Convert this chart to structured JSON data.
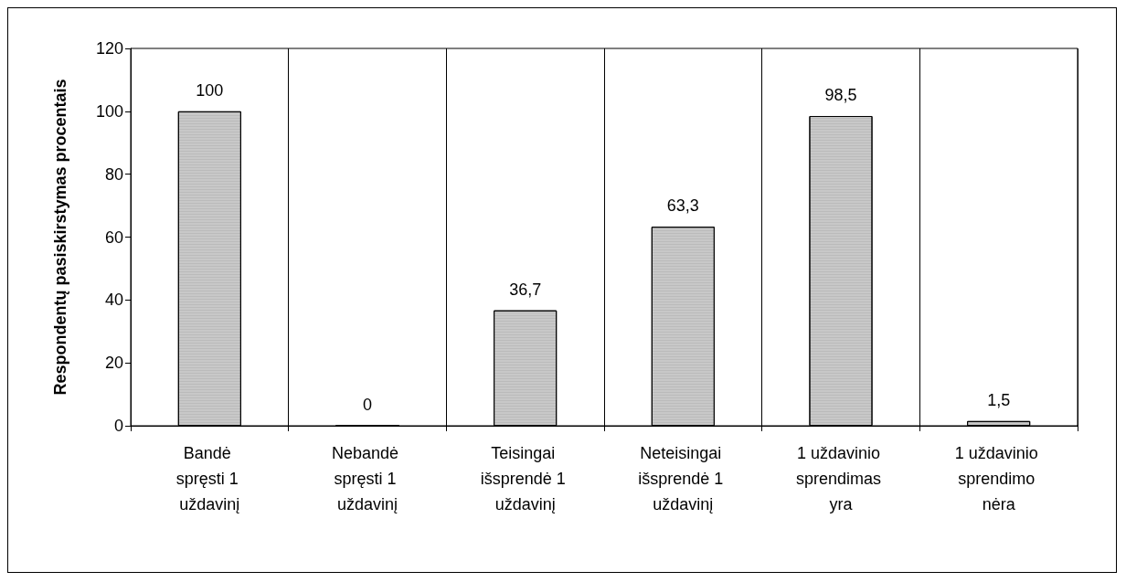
{
  "chart_data": {
    "type": "bar",
    "ylabel": "Respondentų pasiskirstymas procentais",
    "categories": [
      "Bandė spręsti 1 uždavinį",
      "Nebandė spręsti 1 uždavinį",
      "Teisingai išsprendė 1 uždavinį",
      "Neteisingai išsprendė 1 uždavinį",
      "1 uždavinio sprendimas yra",
      "1 uždavinio sprendimo nėra"
    ],
    "values": [
      100,
      0,
      36.7,
      63.3,
      98.5,
      1.5
    ],
    "color": "#c8c8c8",
    "ylim": [
      0,
      120
    ],
    "yticks": [
      0,
      20,
      40,
      60,
      80,
      100,
      120
    ],
    "grid": "x",
    "value_labels": [
      "100",
      "0",
      "36,7",
      "63,3",
      "98,5",
      "1,5"
    ]
  }
}
